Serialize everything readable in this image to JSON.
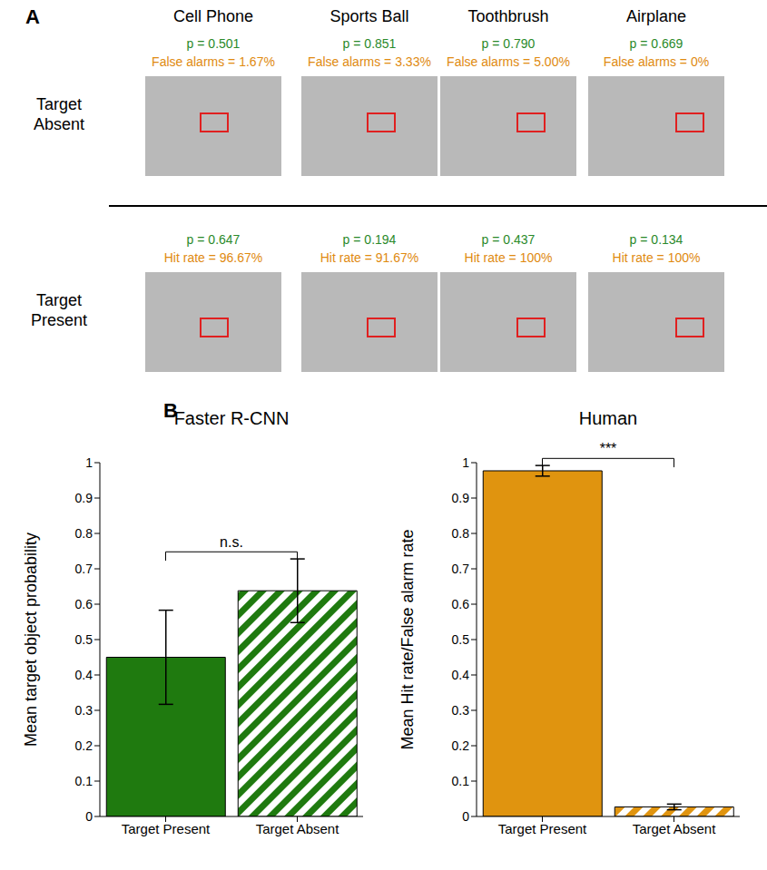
{
  "panel_a": {
    "label": "A",
    "columns": [
      "Cell Phone",
      "Sports Ball",
      "Toothbrush",
      "Airplane"
    ],
    "rows": [
      {
        "label": "Target Absent",
        "cells": [
          {
            "p": "p = 0.501",
            "rate": "False alarms = 1.67%"
          },
          {
            "p": "p = 0.851",
            "rate": "False alarms = 3.33%"
          },
          {
            "p": "p = 0.790",
            "rate": "False alarms = 5.00%"
          },
          {
            "p": "p = 0.669",
            "rate": "False alarms = 0%"
          }
        ]
      },
      {
        "label": "Target Present",
        "cells": [
          {
            "p": "p = 0.647",
            "rate": "Hit rate = 96.67%"
          },
          {
            "p": "p = 0.194",
            "rate": "Hit rate = 91.67%"
          },
          {
            "p": "p = 0.437",
            "rate": "Hit rate = 100%"
          },
          {
            "p": "p = 0.134",
            "rate": "Hit rate = 100%"
          }
        ]
      }
    ]
  },
  "panel_b_label": "B",
  "chart_data": [
    {
      "type": "bar",
      "title": "Faster R-CNN",
      "y_label": "Mean target object probability",
      "categories": [
        "Target Present",
        "Target Absent"
      ],
      "values": [
        0.45,
        0.638
      ],
      "errors": [
        0.133,
        0.09
      ],
      "color": "#1f7a0f",
      "annotation": "n.s.",
      "ylim": [
        0,
        1
      ],
      "yticks": [
        0,
        0.1,
        0.2,
        0.3,
        0.4,
        0.5,
        0.6,
        0.7,
        0.8,
        0.9,
        1
      ]
    },
    {
      "type": "bar",
      "title": "Human",
      "y_label": "Mean Hit rate/False alarm rate",
      "categories": [
        "Target Present",
        "Target Absent"
      ],
      "values": [
        0.977,
        0.027
      ],
      "errors": [
        0.015,
        0.008
      ],
      "color": "#e0940f",
      "annotation": "***",
      "ylim": [
        0,
        1
      ],
      "yticks": [
        0,
        0.1,
        0.2,
        0.3,
        0.4,
        0.5,
        0.6,
        0.7,
        0.8,
        0.9,
        1
      ]
    }
  ]
}
